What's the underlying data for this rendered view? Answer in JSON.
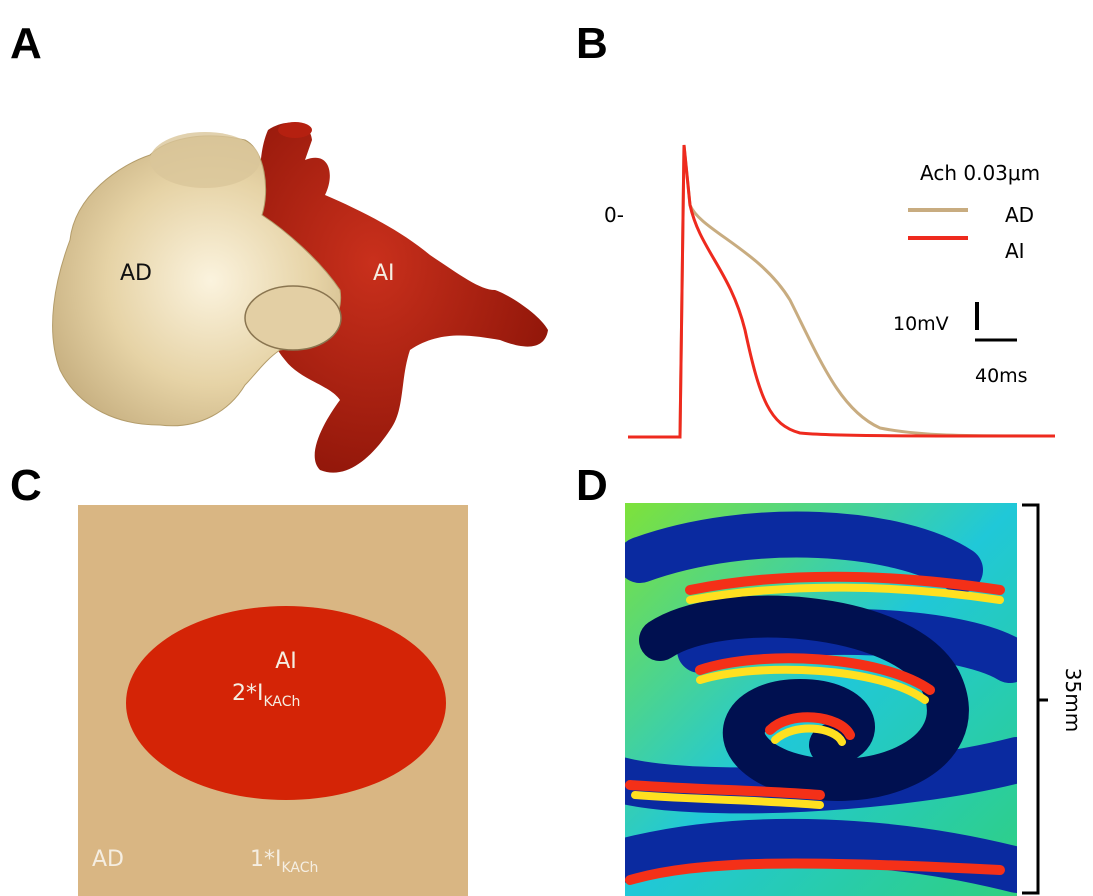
{
  "panels": [
    {
      "label": "A",
      "labels": [
        "AD",
        "AI"
      ]
    },
    {
      "label": "B",
      "zero_mark": "0-",
      "legend": {
        "title": "Ach 0.03μm",
        "entries": [
          "AD",
          "AI"
        ]
      },
      "scale_bar": {
        "voltage": "10mV",
        "time": "40ms"
      }
    },
    {
      "label": "C",
      "inner": {
        "name": "AI",
        "factor": "2*I",
        "subscript": "KACh"
      },
      "outer": {
        "name": "AD",
        "factor": "1*I",
        "subscript": "KACh"
      }
    },
    {
      "label": "D",
      "scale": "35mm"
    }
  ]
}
